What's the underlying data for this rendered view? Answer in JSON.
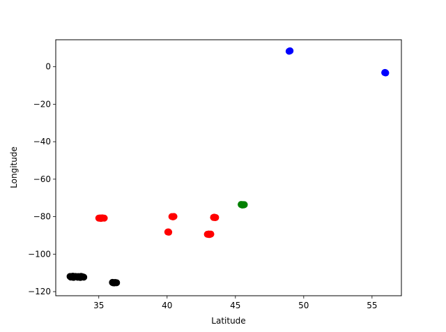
{
  "chart_data": {
    "type": "scatter",
    "title": "",
    "xlabel": "Latitude",
    "ylabel": "Longitude",
    "xlim": [
      31.85,
      57.15
    ],
    "ylim": [
      -122.2,
      14.4
    ],
    "grid": false,
    "xticks": [
      35,
      40,
      45,
      50,
      55
    ],
    "yticks": [
      0,
      -20,
      -40,
      -60,
      -80,
      -100,
      -120
    ],
    "series": [
      {
        "color": "#0000ff",
        "points": [
          [
            48.97,
            8.4
          ],
          [
            48.93,
            8.25
          ],
          [
            49.0,
            8.5
          ],
          [
            55.98,
            -3.2
          ],
          [
            55.93,
            -3.15
          ],
          [
            56.0,
            -3.3
          ],
          [
            55.95,
            -3.05
          ]
        ]
      },
      {
        "color": "#008000",
        "points": [
          [
            45.45,
            -73.6
          ],
          [
            45.55,
            -73.55
          ],
          [
            45.6,
            -73.7
          ],
          [
            45.5,
            -73.8
          ],
          [
            45.65,
            -73.6
          ],
          [
            45.42,
            -73.5
          ]
        ]
      },
      {
        "color": "#ff0000",
        "points": [
          [
            35.0,
            -80.8
          ],
          [
            35.1,
            -80.7
          ],
          [
            35.2,
            -80.85
          ],
          [
            35.3,
            -80.75
          ],
          [
            35.4,
            -80.8
          ],
          [
            35.15,
            -80.95
          ],
          [
            35.25,
            -80.65
          ],
          [
            40.35,
            -79.95
          ],
          [
            40.45,
            -80.05
          ],
          [
            40.5,
            -79.9
          ],
          [
            40.42,
            -80.1
          ],
          [
            40.05,
            -88.2
          ],
          [
            40.12,
            -88.3
          ],
          [
            40.1,
            -88.15
          ],
          [
            42.95,
            -89.4
          ],
          [
            43.05,
            -89.25
          ],
          [
            43.15,
            -89.45
          ],
          [
            43.2,
            -89.3
          ],
          [
            43.08,
            -89.55
          ],
          [
            43.4,
            -80.4
          ],
          [
            43.5,
            -80.5
          ],
          [
            43.45,
            -80.3
          ],
          [
            43.55,
            -80.45
          ]
        ]
      },
      {
        "color": "#000000",
        "points": [
          [
            32.9,
            -111.9
          ],
          [
            33.0,
            -112.1
          ],
          [
            33.1,
            -111.8
          ],
          [
            33.2,
            -112.0
          ],
          [
            33.3,
            -111.9
          ],
          [
            33.4,
            -112.1
          ],
          [
            33.5,
            -111.95
          ],
          [
            33.6,
            -112.2
          ],
          [
            33.7,
            -111.85
          ],
          [
            33.8,
            -112.05
          ],
          [
            33.9,
            -112.3
          ],
          [
            33.45,
            -112.35
          ],
          [
            33.15,
            -112.4
          ],
          [
            33.65,
            -112.45
          ],
          [
            32.95,
            -112.25
          ],
          [
            36.0,
            -115.1
          ],
          [
            36.1,
            -115.2
          ],
          [
            36.2,
            -115.15
          ],
          [
            36.3,
            -115.25
          ],
          [
            36.15,
            -115.35
          ],
          [
            36.05,
            -115.3
          ]
        ]
      }
    ]
  }
}
